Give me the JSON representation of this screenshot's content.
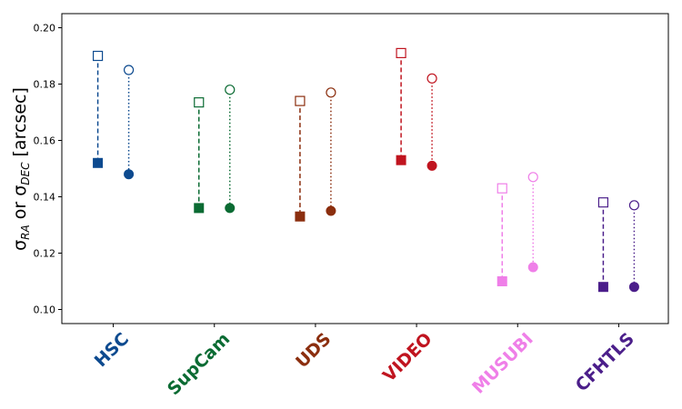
{
  "chart_data": {
    "type": "scatter",
    "ylabel": "σ_RA or σ_DEC [arcsec]",
    "ylabel_parts": {
      "sym1": "σ",
      "sub1": "RA",
      "mid": " or ",
      "sym2": "σ",
      "sub2": "DEC",
      "unit": " [arcsec]"
    },
    "ylim": [
      0.095,
      0.205
    ],
    "yticks": [
      "0.10",
      "0.12",
      "0.14",
      "0.16",
      "0.18",
      "0.20"
    ],
    "ytick_values": [
      0.1,
      0.12,
      0.14,
      0.16,
      0.18,
      0.2
    ],
    "grid": false,
    "categories": [
      "HSC",
      "SupCam",
      "UDS",
      "VIDEO",
      "MUSUBI",
      "CFHTLS"
    ],
    "colors": [
      "#0d4a8f",
      "#0b6b33",
      "#8b2e0e",
      "#c0141f",
      "#ef7fe8",
      "#4b1e8a"
    ],
    "ra": {
      "marker": "square",
      "linestyle": "dashed",
      "open": [
        0.19,
        0.1735,
        0.174,
        0.191,
        0.143,
        0.138
      ],
      "filled": [
        0.152,
        0.136,
        0.133,
        0.153,
        0.11,
        0.108
      ]
    },
    "dec": {
      "marker": "circle",
      "linestyle": "dotted",
      "open": [
        0.185,
        0.178,
        0.177,
        0.182,
        0.147,
        0.137
      ],
      "filled": [
        0.148,
        0.136,
        0.135,
        0.151,
        0.115,
        0.108
      ]
    }
  }
}
